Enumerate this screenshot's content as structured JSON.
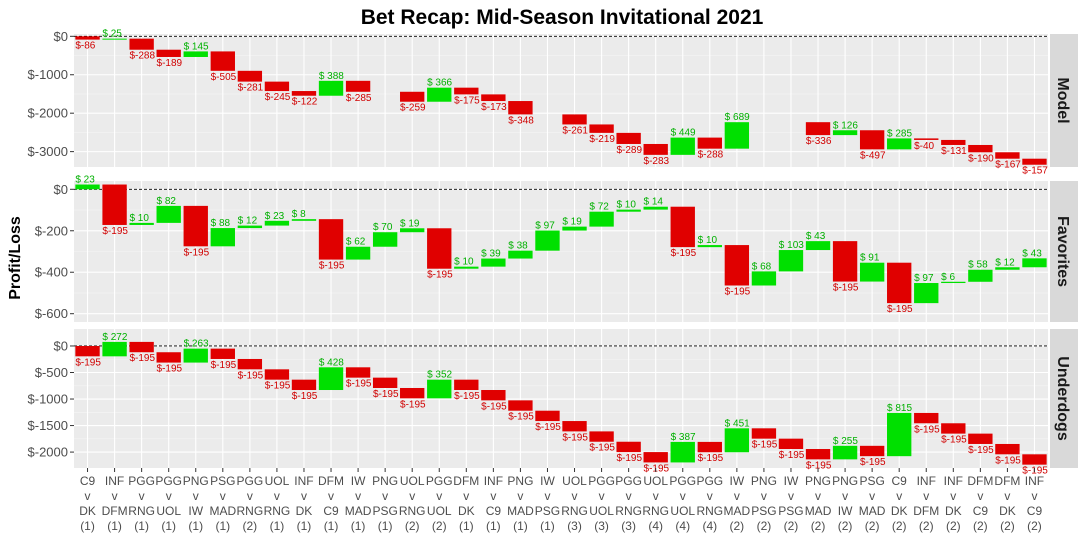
{
  "chart_data": {
    "type": "waterfall",
    "title": "Bet Recap: Mid-Season Invitational 2021",
    "ylabel": "Profit/Loss",
    "xlabel": "",
    "colors": {
      "win": "#00e000",
      "loss": "#e00000",
      "win_text": "#00b000",
      "loss_text": "#d00000"
    },
    "categories": [
      [
        "C9",
        "v",
        "DK",
        "(1)"
      ],
      [
        "INF",
        "v",
        "DFM",
        "(1)"
      ],
      [
        "PGG",
        "v",
        "RNG",
        "(1)"
      ],
      [
        "PGG",
        "v",
        "UOL",
        "(1)"
      ],
      [
        "PNG",
        "v",
        "IW",
        "(1)"
      ],
      [
        "PSG",
        "v",
        "MAD",
        "(1)"
      ],
      [
        "PGG",
        "v",
        "RNG",
        "(2)"
      ],
      [
        "UOL",
        "v",
        "RNG",
        "(1)"
      ],
      [
        "INF",
        "v",
        "DK",
        "(1)"
      ],
      [
        "DFM",
        "v",
        "C9",
        "(1)"
      ],
      [
        "IW",
        "v",
        "MAD",
        "(1)"
      ],
      [
        "PNG",
        "v",
        "PSG",
        "(1)"
      ],
      [
        "UOL",
        "v",
        "RNG",
        "(2)"
      ],
      [
        "PGG",
        "v",
        "UOL",
        "(2)"
      ],
      [
        "DFM",
        "v",
        "DK",
        "(1)"
      ],
      [
        "INF",
        "v",
        "C9",
        "(1)"
      ],
      [
        "PNG",
        "v",
        "MAD",
        "(1)"
      ],
      [
        "IW",
        "v",
        "PSG",
        "(1)"
      ],
      [
        "UOL",
        "v",
        "RNG",
        "(3)"
      ],
      [
        "PGG",
        "v",
        "UOL",
        "(3)"
      ],
      [
        "PGG",
        "v",
        "RNG",
        "(3)"
      ],
      [
        "UOL",
        "v",
        "RNG",
        "(4)"
      ],
      [
        "PGG",
        "v",
        "UOL",
        "(4)"
      ],
      [
        "PGG",
        "v",
        "RNG",
        "(4)"
      ],
      [
        "IW",
        "v",
        "MAD",
        "(2)"
      ],
      [
        "PNG",
        "v",
        "PSG",
        "(2)"
      ],
      [
        "IW",
        "v",
        "PSG",
        "(2)"
      ],
      [
        "PNG",
        "v",
        "MAD",
        "(2)"
      ],
      [
        "PNG",
        "v",
        "IW",
        "(2)"
      ],
      [
        "PSG",
        "v",
        "MAD",
        "(2)"
      ],
      [
        "C9",
        "v",
        "DK",
        "(2)"
      ],
      [
        "INF",
        "v",
        "DFM",
        "(2)"
      ],
      [
        "INF",
        "v",
        "DK",
        "(2)"
      ],
      [
        "DFM",
        "v",
        "C9",
        "(2)"
      ],
      [
        "DFM",
        "v",
        "DK",
        "(2)"
      ],
      [
        "INF",
        "v",
        "C9",
        "(2)"
      ]
    ],
    "panels": [
      {
        "name": "Model",
        "ylim": [
          -3400,
          60
        ],
        "yticks": [
          0,
          -1000,
          -2000,
          -3000
        ],
        "ytick_labels": [
          "$0",
          "$-1000",
          "$-2000",
          "$-3000"
        ],
        "values": [
          -86,
          25,
          -288,
          -189,
          145,
          -505,
          -281,
          -245,
          -122,
          388,
          -285,
          null,
          -259,
          366,
          -175,
          -173,
          -348,
          null,
          -261,
          -219,
          -289,
          -283,
          449,
          -288,
          689,
          null,
          null,
          -336,
          126,
          -497,
          285,
          -40,
          -131,
          -190,
          -167,
          -157
        ],
        "labels": [
          "$-86",
          "$ 25",
          "$-288",
          "$-189",
          "$ 145",
          "$-505",
          "$-281",
          "$-245",
          "$-122",
          "$ 388",
          "$-285",
          "",
          "$-259",
          "$ 366",
          "$-175",
          "$-173",
          "$-348",
          "",
          "$-261",
          "$-219",
          "$-289",
          "$-283",
          "$ 449",
          "$-288",
          "$ 689",
          "",
          "",
          "$-336",
          "$ 126",
          "$-497",
          "$ 285",
          "$-40",
          "$-131",
          "$-190",
          "$-167",
          "$-157"
        ]
      },
      {
        "name": "Favorites",
        "ylim": [
          -640,
          40
        ],
        "yticks": [
          0,
          -200,
          -400,
          -600
        ],
        "ytick_labels": [
          "$0",
          "$-200",
          "$-400",
          "$-600"
        ],
        "values": [
          23,
          -195,
          10,
          82,
          -195,
          88,
          12,
          23,
          8,
          -195,
          62,
          70,
          19,
          -195,
          10,
          39,
          38,
          97,
          19,
          72,
          10,
          14,
          -195,
          10,
          -195,
          68,
          103,
          43,
          -195,
          91,
          -195,
          97,
          6,
          58,
          12,
          43
        ],
        "labels": [
          "$ 23",
          "$-195",
          "$ 10",
          "$ 82",
          "$-195",
          "$ 88",
          "$ 12",
          "$ 23",
          "$ 8",
          "$-195",
          "$ 62",
          "$ 70",
          "$ 19",
          "$-195",
          "$ 10",
          "$ 39",
          "$ 38",
          "$ 97",
          "$ 19",
          "$ 72",
          "$ 10",
          "$ 14",
          "$-195",
          "$ 10",
          "$-195",
          "$ 68",
          "$ 103",
          "$ 43",
          "$-195",
          "$ 91",
          "$-195",
          "$ 97",
          "$ 6",
          "$ 58",
          "$ 12",
          "$ 43"
        ]
      },
      {
        "name": "Underdogs",
        "ylim": [
          -2300,
          320
        ],
        "yticks": [
          0,
          -500,
          -1000,
          -1500,
          -2000
        ],
        "ytick_labels": [
          "$0",
          "$-500",
          "$-1000",
          "$-1500",
          "$-2000"
        ],
        "values": [
          -195,
          272,
          -195,
          -195,
          263,
          -195,
          -195,
          -195,
          -195,
          428,
          -195,
          -195,
          -195,
          352,
          -195,
          -195,
          -195,
          -195,
          -195,
          -195,
          -195,
          -195,
          387,
          -195,
          451,
          -195,
          -195,
          -195,
          255,
          -195,
          815,
          -195,
          -195,
          -195,
          -195,
          -195
        ],
        "labels": [
          "$-195",
          "$ 272",
          "$-195",
          "$-195",
          "$ 263",
          "$-195",
          "$-195",
          "$-195",
          "$-195",
          "$ 428",
          "$-195",
          "$-195",
          "$-195",
          "$ 352",
          "$-195",
          "$-195",
          "$-195",
          "$-195",
          "$-195",
          "$-195",
          "$-195",
          "$-195",
          "$ 387",
          "$-195",
          "$ 451",
          "$-195",
          "$-195",
          "$-195",
          "$ 255",
          "$-195",
          "$ 815",
          "$-195",
          "$-195",
          "$-195",
          "$-195",
          "$-195"
        ]
      }
    ]
  }
}
